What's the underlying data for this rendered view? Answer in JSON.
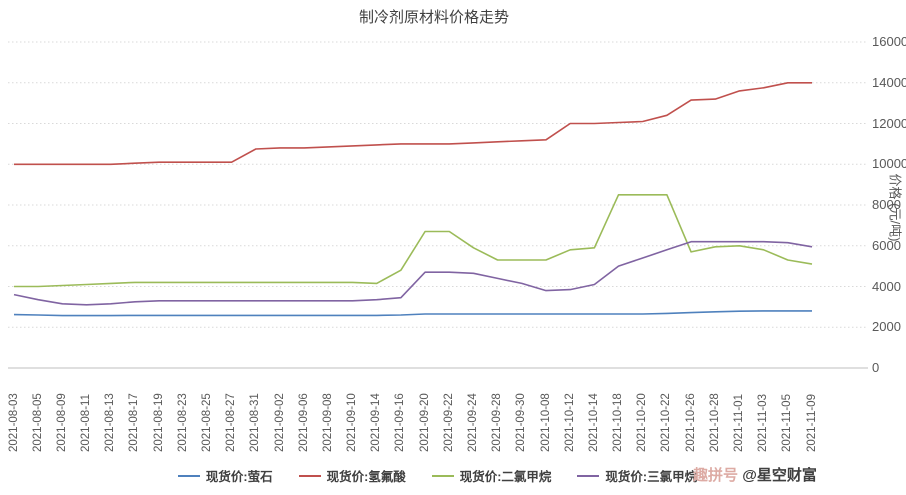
{
  "chart_data": {
    "type": "line",
    "title": "制冷剂原材料价格走势",
    "xlabel": "",
    "ylabel": "价格 (元/吨)",
    "ylim": [
      0,
      16000
    ],
    "y_ticks": [
      0,
      2000,
      4000,
      6000,
      8000,
      10000,
      12000,
      14000,
      16000
    ],
    "grid": true,
    "legend_position": "bottom",
    "x": [
      "2021-08-03",
      "2021-08-05",
      "2021-08-09",
      "2021-08-11",
      "2021-08-13",
      "2021-08-17",
      "2021-08-19",
      "2021-08-23",
      "2021-08-25",
      "2021-08-27",
      "2021-08-31",
      "2021-09-02",
      "2021-09-06",
      "2021-09-08",
      "2021-09-10",
      "2021-09-14",
      "2021-09-16",
      "2021-09-20",
      "2021-09-22",
      "2021-09-24",
      "2021-09-28",
      "2021-09-30",
      "2021-10-08",
      "2021-10-12",
      "2021-10-14",
      "2021-10-18",
      "2021-10-20",
      "2021-10-22",
      "2021-10-26",
      "2021-10-28",
      "2021-11-01",
      "2021-11-03",
      "2021-11-05",
      "2021-11-09"
    ],
    "series": [
      {
        "name": "现货价:萤石",
        "color": "#4F81BD",
        "values": [
          2620,
          2600,
          2570,
          2570,
          2570,
          2580,
          2580,
          2580,
          2580,
          2580,
          2580,
          2580,
          2580,
          2580,
          2580,
          2580,
          2600,
          2650,
          2650,
          2650,
          2650,
          2650,
          2650,
          2650,
          2650,
          2650,
          2650,
          2680,
          2720,
          2760,
          2790,
          2800,
          2800,
          2800
        ]
      },
      {
        "name": "现货价:氢氟酸",
        "color": "#C0504D",
        "values": [
          10000,
          10000,
          10000,
          10000,
          10000,
          10050,
          10100,
          10100,
          10100,
          10100,
          10750,
          10800,
          10800,
          10850,
          10900,
          10950,
          11000,
          11000,
          11000,
          11050,
          11100,
          11150,
          11200,
          12000,
          12000,
          12050,
          12100,
          12400,
          13150,
          13200,
          13600,
          13750,
          14000,
          14000
        ]
      },
      {
        "name": "现货价:二氯甲烷",
        "color": "#9BBB59",
        "values": [
          4000,
          4000,
          4050,
          4100,
          4150,
          4200,
          4200,
          4200,
          4200,
          4200,
          4200,
          4200,
          4200,
          4200,
          4200,
          4150,
          4800,
          6700,
          6700,
          5900,
          5300,
          5300,
          5300,
          5800,
          5900,
          8500,
          8500,
          8500,
          5700,
          5950,
          6000,
          5800,
          5300,
          5100
        ]
      },
      {
        "name": "现货价:三氯甲烷",
        "color": "#8064A2",
        "values": [
          3600,
          3350,
          3150,
          3100,
          3150,
          3250,
          3300,
          3300,
          3300,
          3300,
          3300,
          3300,
          3300,
          3300,
          3300,
          3350,
          3450,
          4700,
          4700,
          4650,
          4400,
          4150,
          3800,
          3850,
          4100,
          5000,
          5400,
          5800,
          6200,
          6200,
          6200,
          6200,
          6150,
          5950
        ]
      }
    ]
  },
  "axis_colors": {
    "grid": "#d9d9d9",
    "axis_line": "#bfbfbf",
    "tick_text": "#595959"
  },
  "watermark": {
    "badge": "趣拼号",
    "badge_color": "#ddaba4",
    "handle": "@星空财富",
    "handle_color": "#3f3f3f"
  }
}
